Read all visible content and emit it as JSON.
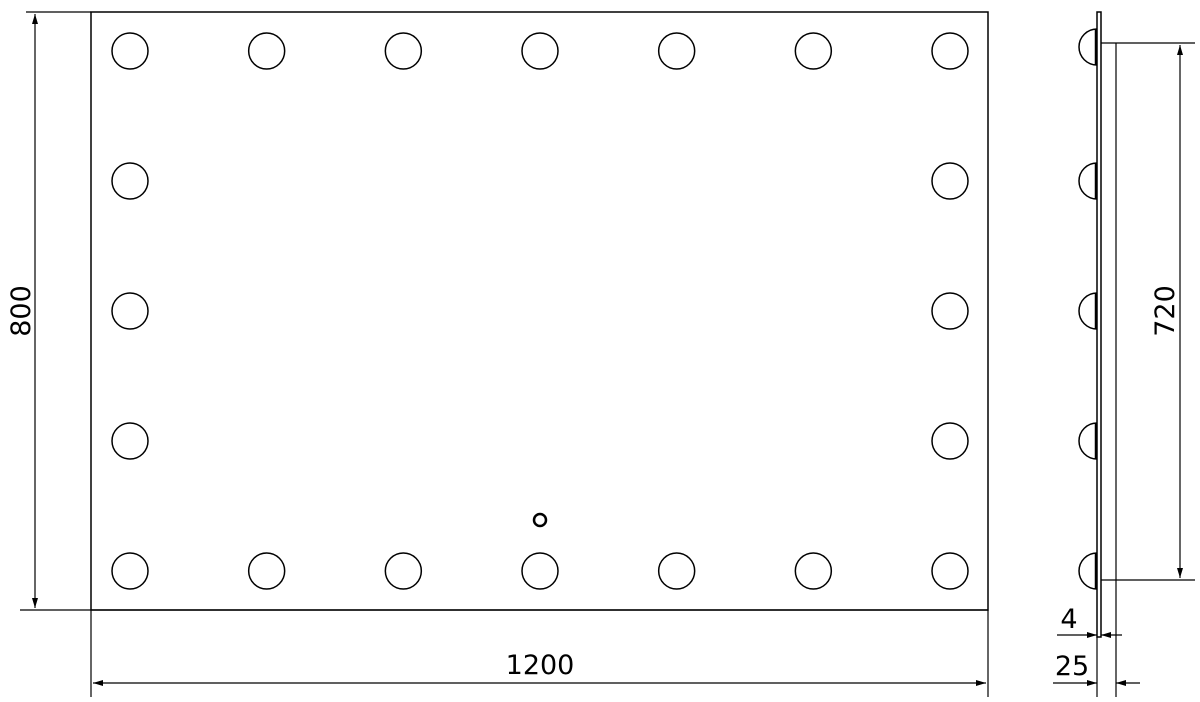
{
  "front_view": {
    "width_label": "1200",
    "height_label": "800",
    "bulb_columns": 7,
    "bulb_rows": 5
  },
  "side_view": {
    "bulb_spacing_label": "720",
    "glass_thickness_label": "4",
    "depth_label": "25"
  },
  "colors": {
    "line": "#000000",
    "background": "#ffffff"
  }
}
